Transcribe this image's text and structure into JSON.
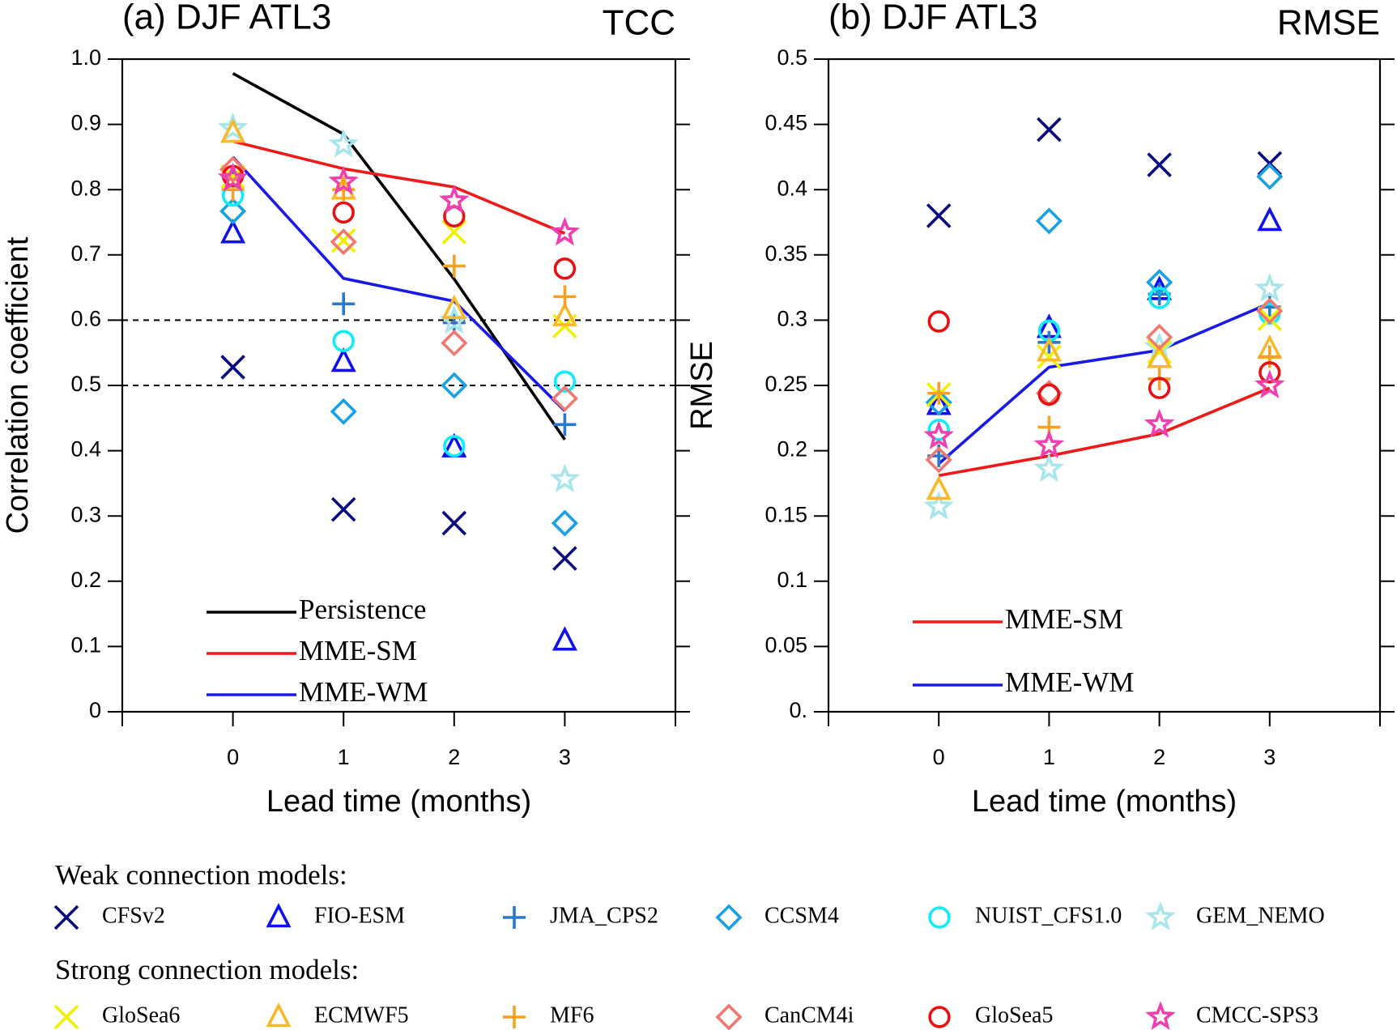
{
  "chart_data": [
    {
      "type": "line",
      "title": "(a) DJF ATL3",
      "metric": "TCC",
      "y_label": "Correlation coefficient",
      "x_label": "Lead time (months)",
      "x": [
        0,
        1,
        2,
        3
      ],
      "xlim": [
        -1,
        4
      ],
      "xticks": [
        0,
        1,
        2,
        3
      ],
      "ylim": [
        0,
        1
      ],
      "yticks": [
        0,
        0.1,
        0.2,
        0.3,
        0.4,
        0.5,
        0.6,
        0.7,
        0.8,
        0.9,
        {
          "value": 1,
          "label": "1.0"
        }
      ],
      "hlines": [
        0.6,
        0.5
      ],
      "legend": "lower left",
      "series": [
        {
          "name": "Persistence",
          "color": "#000000",
          "style": "line",
          "values": [
            0.978,
            0.885,
            0.663,
            0.417
          ]
        },
        {
          "name": "MME-SM",
          "color": "#f01818",
          "style": "line",
          "values": [
            0.874,
            0.832,
            0.804,
            0.733
          ]
        },
        {
          "name": "MME-WM",
          "color": "#1a1ae8",
          "style": "line",
          "values": [
            0.85,
            0.664,
            0.629,
            0.461
          ]
        },
        {
          "name": "CFSv2",
          "color": "#0b0b80",
          "marker": "x",
          "values": [
            0.528,
            0.31,
            0.289,
            0.235
          ]
        },
        {
          "name": "FIO-ESM",
          "color": "#1010ee",
          "marker": "triangle",
          "values": [
            0.733,
            0.536,
            0.405,
            0.109
          ]
        },
        {
          "name": "JMA_CPS2",
          "color": "#2878d0",
          "marker": "plus",
          "values": [
            0.82,
            0.625,
            0.596,
            0.44
          ]
        },
        {
          "name": "CCSM4",
          "color": "#1aa0e6",
          "marker": "diamond",
          "values": [
            0.767,
            0.46,
            0.5,
            0.289
          ]
        },
        {
          "name": "NUIST_CFS1.0",
          "color": "#10ecf8",
          "marker": "circle",
          "values": [
            0.791,
            0.568,
            0.407,
            0.506
          ]
        },
        {
          "name": "GEM_NEMO",
          "color": "#a8e6ec",
          "marker": "star",
          "values": [
            0.894,
            0.869,
            0.599,
            0.356
          ]
        },
        {
          "name": "GloSea6",
          "color": "#f0f000",
          "marker": "x",
          "values": [
            0.82,
            0.722,
            0.735,
            0.591
          ]
        },
        {
          "name": "ECMWF5",
          "color": "#f8b828",
          "marker": "triangle",
          "values": [
            0.887,
            0.8,
            0.617,
            0.606
          ]
        },
        {
          "name": "MF6",
          "color": "#f8a020",
          "marker": "plus",
          "values": [
            0.8,
            0.8,
            0.683,
            0.636
          ]
        },
        {
          "name": "CanCM4i",
          "color": "#f07870",
          "marker": "diamond",
          "values": [
            0.831,
            0.72,
            0.565,
            0.48
          ]
        },
        {
          "name": "GloSea5",
          "color": "#e81010",
          "marker": "circle",
          "values": [
            0.821,
            0.765,
            0.759,
            0.679
          ]
        },
        {
          "name": "CMCC-SPS3",
          "color": "#f040b0",
          "marker": "star",
          "values": [
            0.817,
            0.812,
            0.783,
            0.734
          ]
        }
      ]
    },
    {
      "type": "line",
      "title": "(b) DJF ATL3",
      "metric": "RMSE",
      "y_label": "RMSE",
      "x_label": "Lead time (months)",
      "x": [
        0,
        1,
        2,
        3
      ],
      "xlim": [
        -1,
        4
      ],
      "xticks": [
        0,
        1,
        2,
        3
      ],
      "ylim": [
        0,
        0.5
      ],
      "yticks": [
        {
          "value": 0,
          "label": "0."
        },
        0.05,
        0.1,
        0.15,
        0.2,
        0.25,
        0.3,
        0.35,
        0.4,
        0.45,
        0.5
      ],
      "legend": "lower left",
      "series": [
        {
          "name": "MME-SM",
          "color": "#f01818",
          "style": "line",
          "values": [
            0.181,
            0.196,
            0.213,
            0.248
          ]
        },
        {
          "name": "MME-WM",
          "color": "#1a1ae8",
          "style": "line",
          "values": [
            0.19,
            0.264,
            0.277,
            0.313
          ]
        },
        {
          "name": "CFSv2",
          "color": "#0b0b80",
          "marker": "x",
          "values": [
            0.38,
            0.446,
            0.419,
            0.42
          ]
        },
        {
          "name": "FIO-ESM",
          "color": "#1010ee",
          "marker": "triangle",
          "values": [
            0.235,
            0.294,
            0.323,
            0.376
          ]
        },
        {
          "name": "JMA_CPS2",
          "color": "#2878d0",
          "marker": "plus",
          "values": [
            0.196,
            0.283,
            0.32,
            0.31
          ]
        },
        {
          "name": "CCSM4",
          "color": "#1aa0e6",
          "marker": "diamond",
          "values": [
            0.237,
            0.376,
            0.329,
            0.41
          ]
        },
        {
          "name": "NUIST_CFS1.0",
          "color": "#10ecf8",
          "marker": "circle",
          "values": [
            0.216,
            0.292,
            0.317,
            0.305
          ]
        },
        {
          "name": "GEM_NEMO",
          "color": "#a8e6ec",
          "marker": "star",
          "values": [
            0.157,
            0.186,
            0.279,
            0.324
          ]
        },
        {
          "name": "GloSea6",
          "color": "#f0f000",
          "marker": "x",
          "values": [
            0.243,
            0.272,
            0.276,
            0.301
          ]
        },
        {
          "name": "ECMWF5",
          "color": "#f8b828",
          "marker": "triangle",
          "values": [
            0.17,
            0.276,
            0.271,
            0.278
          ]
        },
        {
          "name": "MF6",
          "color": "#f8a020",
          "marker": "plus",
          "values": [
            0.244,
            0.218,
            0.255,
            0.272
          ]
        },
        {
          "name": "CanCM4i",
          "color": "#f07870",
          "marker": "diamond",
          "values": [
            0.193,
            0.244,
            0.287,
            0.307
          ]
        },
        {
          "name": "GloSea5",
          "color": "#e81010",
          "marker": "circle",
          "values": [
            0.299,
            0.243,
            0.248,
            0.26
          ]
        },
        {
          "name": "CMCC-SPS3",
          "color": "#f040b0",
          "marker": "star",
          "values": [
            0.211,
            0.204,
            0.22,
            0.25
          ]
        }
      ]
    }
  ],
  "legend": {
    "groups": [
      {
        "title": "Weak connection models:",
        "series": [
          "CFSv2",
          "FIO-ESM",
          "JMA_CPS2",
          "CCSM4",
          "NUIST_CFS1.0",
          "GEM_NEMO"
        ]
      },
      {
        "title": "Strong connection models:",
        "series": [
          "GloSea6",
          "ECMWF5",
          "MF6",
          "CanCM4i",
          "GloSea5",
          "CMCC-SPS3"
        ]
      }
    ]
  }
}
